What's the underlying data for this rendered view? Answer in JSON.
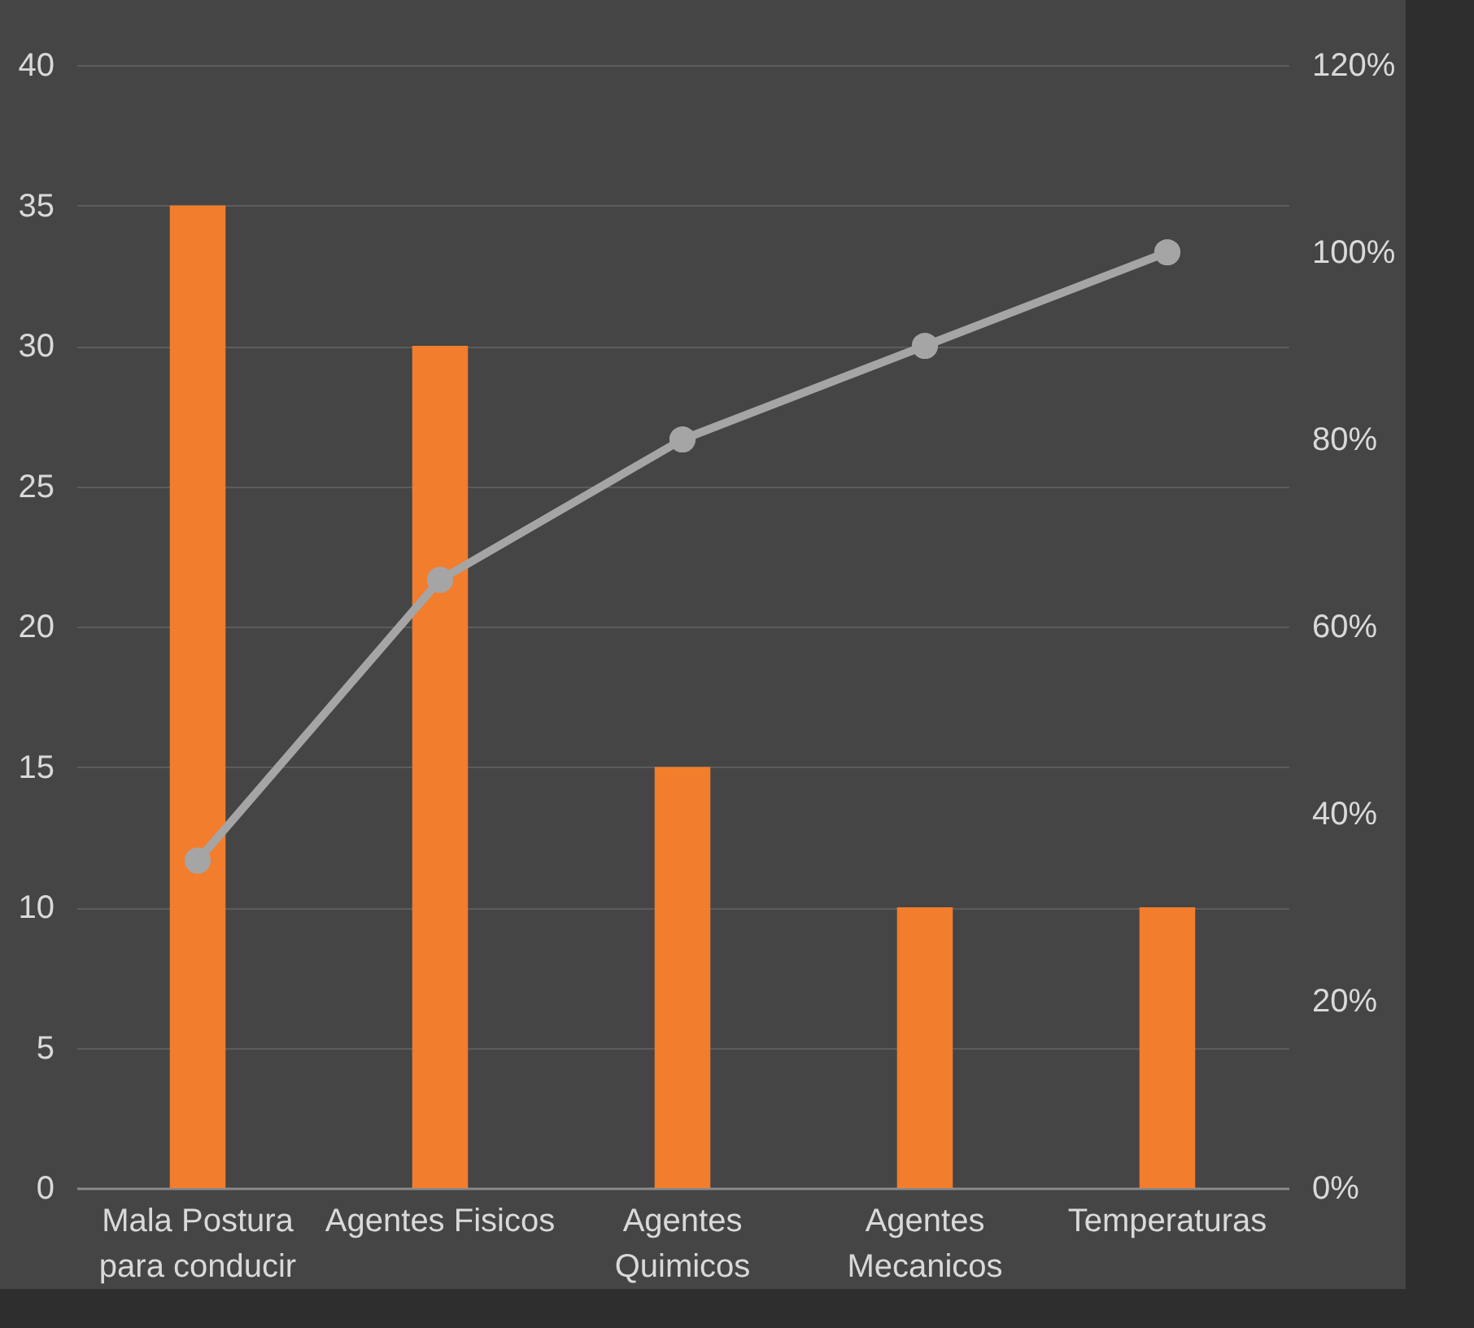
{
  "chart_data": {
    "type": "bar",
    "categories": [
      "Mala Postura para conducir",
      "Agentes Fisicos",
      "Agentes Quimicos",
      "Agentes Mecanicos",
      "Temperaturas"
    ],
    "series": [
      {
        "color": "#f27d2c",
        "values": [
          35,
          30,
          15,
          10,
          10
        ]
      },
      {
        "type": "line",
        "axis": "y2",
        "color": "#a5a5a5",
        "values": [
          35,
          65,
          80,
          90,
          100
        ]
      }
    ],
    "ylim": [
      0,
      40
    ],
    "yticks": [
      0,
      5,
      10,
      15,
      20,
      25,
      30,
      35,
      40
    ],
    "y2lim": [
      0,
      120
    ],
    "y2ticks": [
      {
        "value": 0,
        "label": "0%"
      },
      {
        "value": 20,
        "label": "20%"
      },
      {
        "value": 40,
        "label": "40%"
      },
      {
        "value": 60,
        "label": "60%"
      },
      {
        "value": 80,
        "label": "80%"
      },
      {
        "value": 100,
        "label": "100%"
      },
      {
        "value": 120,
        "label": "120%"
      }
    ],
    "grid": "y",
    "marker": "circle",
    "line_style": "solid"
  }
}
